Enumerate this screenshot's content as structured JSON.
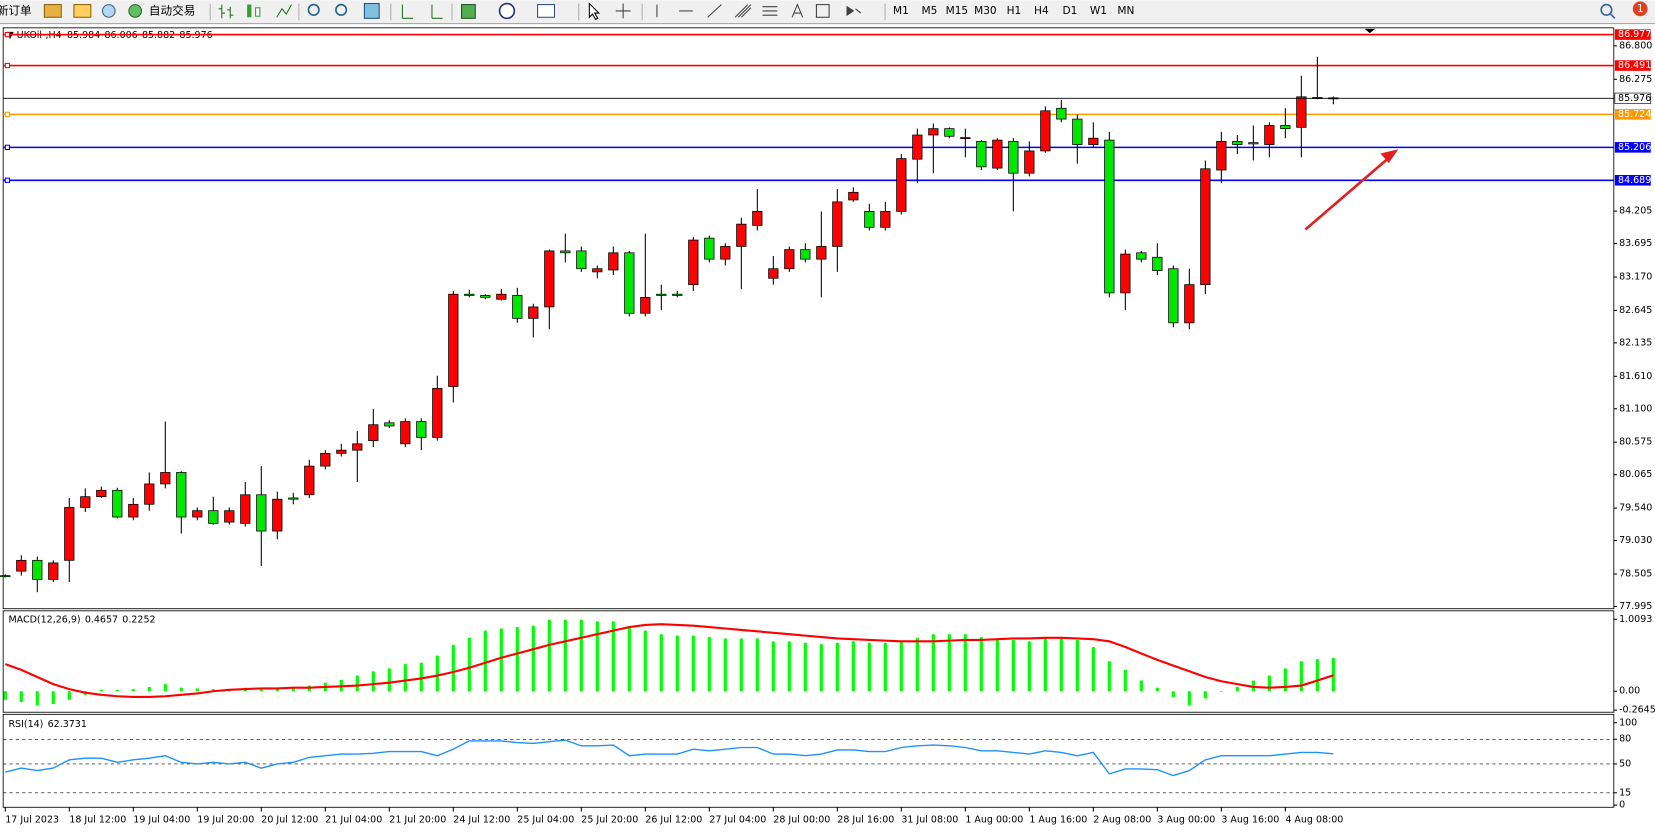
{
  "toolbar": {
    "new_order": "新订单",
    "auto_trading": "自动交易",
    "timeframes": [
      "M1",
      "M5",
      "M15",
      "M30",
      "H1",
      "H4",
      "D1",
      "W1",
      "MN"
    ],
    "notifications": 1
  },
  "chart_data": [
    {
      "type": "candlestick",
      "title": "UKOil-,H4",
      "up_color": "#ff0000",
      "down_color": "#00e600",
      "categories": [
        "17 Jul 2023",
        null,
        null,
        null,
        "18 Jul 12:00",
        null,
        null,
        null,
        "19 Jul 04:00",
        null,
        null,
        null,
        "19 Jul 20:00",
        null,
        null,
        null,
        "20 Jul 12:00",
        null,
        null,
        null,
        "21 Jul 04:00",
        null,
        null,
        null,
        "21 Jul 20:00",
        null,
        null,
        null,
        "24 Jul 12:00",
        null,
        null,
        null,
        "25 Jul 04:00",
        null,
        null,
        null,
        "25 Jul 20:00",
        null,
        null,
        null,
        "26 Jul 12:00",
        null,
        null,
        null,
        "27 Jul 04:00",
        null,
        null,
        null,
        "28 Jul 00:00",
        null,
        null,
        null,
        "28 Jul 16:00",
        null,
        null,
        null,
        "31 Jul 08:00",
        null,
        null,
        null,
        "1 Aug 00:00",
        null,
        null,
        null,
        "1 Aug 16:00",
        null,
        null,
        null,
        "2 Aug 08:00",
        null,
        null,
        null,
        "3 Aug 00:00",
        null,
        null,
        null,
        "3 Aug 16:00",
        null,
        null,
        null,
        "4 Aug 08:00",
        null,
        null,
        null
      ],
      "open": [
        78.48,
        78.55,
        78.72,
        78.42,
        78.72,
        79.55,
        79.72,
        79.82,
        79.4,
        79.6,
        79.92,
        80.1,
        79.4,
        79.5,
        79.32,
        79.3,
        79.75,
        79.18,
        79.7,
        79.75,
        80.2,
        80.4,
        80.45,
        80.6,
        80.88,
        80.55,
        80.9,
        80.65,
        81.45,
        82.9,
        82.88,
        82.82,
        82.88,
        82.52,
        82.7,
        83.58,
        83.58,
        83.25,
        83.28,
        83.55,
        82.6,
        82.9,
        82.9,
        83.05,
        83.78,
        83.45,
        83.65,
        83.98,
        83.15,
        83.3,
        83.6,
        83.45,
        83.65,
        84.38,
        84.2,
        83.95,
        84.2,
        85.02,
        85.4,
        85.5,
        85.35,
        85.3,
        84.88,
        85.3,
        84.8,
        85.15,
        85.82,
        85.65,
        85.25,
        85.32,
        82.92,
        83.55,
        83.48,
        83.3,
        82.45,
        83.05,
        84.85,
        85.3,
        85.28,
        85.25,
        85.55,
        85.52,
        85.99,
        85.984
      ],
      "high": [
        78.5,
        78.8,
        78.78,
        78.72,
        79.7,
        79.85,
        79.88,
        79.86,
        79.7,
        80.1,
        80.9,
        80.12,
        79.55,
        79.72,
        79.55,
        79.95,
        80.2,
        79.8,
        79.78,
        80.3,
        80.45,
        80.55,
        80.75,
        81.1,
        80.92,
        80.95,
        80.95,
        81.62,
        82.95,
        82.97,
        82.9,
        82.98,
        83.0,
        82.75,
        83.6,
        83.85,
        83.65,
        83.35,
        83.65,
        83.58,
        83.85,
        83.05,
        82.95,
        83.8,
        83.82,
        83.7,
        84.1,
        84.55,
        83.5,
        83.65,
        83.7,
        84.2,
        84.55,
        84.58,
        84.32,
        84.35,
        85.1,
        85.5,
        85.58,
        85.52,
        85.5,
        85.32,
        85.35,
        85.35,
        85.3,
        85.85,
        85.95,
        85.72,
        85.6,
        85.45,
        83.6,
        83.58,
        83.7,
        83.35,
        83.3,
        85.0,
        85.45,
        85.4,
        85.55,
        85.6,
        85.82,
        86.33,
        86.63,
        86.006
      ],
      "low": [
        78.45,
        78.48,
        78.22,
        78.38,
        78.38,
        79.48,
        79.7,
        79.38,
        79.35,
        79.5,
        79.85,
        79.14,
        79.35,
        79.28,
        79.28,
        79.25,
        78.63,
        79.05,
        79.6,
        79.7,
        80.15,
        80.35,
        79.95,
        80.5,
        80.8,
        80.5,
        80.45,
        80.6,
        81.2,
        82.85,
        82.82,
        82.8,
        82.45,
        82.22,
        82.35,
        83.4,
        83.25,
        83.15,
        83.2,
        82.55,
        82.55,
        82.65,
        82.85,
        82.95,
        83.4,
        83.35,
        82.98,
        83.9,
        83.05,
        83.25,
        83.4,
        82.85,
        83.25,
        84.35,
        83.9,
        83.9,
        84.15,
        84.65,
        84.8,
        85.35,
        85.05,
        84.85,
        84.85,
        84.2,
        84.75,
        85.12,
        85.6,
        84.95,
        85.2,
        82.85,
        82.65,
        83.4,
        83.2,
        82.38,
        82.35,
        82.9,
        84.65,
        85.1,
        85.0,
        85.05,
        85.35,
        85.05,
        85.96,
        85.882
      ],
      "close": [
        78.47,
        78.72,
        78.42,
        78.68,
        79.55,
        79.72,
        79.82,
        79.4,
        79.6,
        79.92,
        80.1,
        79.4,
        79.5,
        79.3,
        79.5,
        79.75,
        79.18,
        79.68,
        79.68,
        80.2,
        80.4,
        80.45,
        80.55,
        80.85,
        80.83,
        80.9,
        80.65,
        81.42,
        82.9,
        82.88,
        82.85,
        82.9,
        82.52,
        82.7,
        83.58,
        83.55,
        83.3,
        83.3,
        83.55,
        82.6,
        82.85,
        82.88,
        82.88,
        83.75,
        83.45,
        83.65,
        84.0,
        84.2,
        83.3,
        83.6,
        83.45,
        83.65,
        84.35,
        84.5,
        83.95,
        84.2,
        85.03,
        85.4,
        85.5,
        85.38,
        85.36,
        84.9,
        85.32,
        84.8,
        85.15,
        85.78,
        85.65,
        85.25,
        85.35,
        82.92,
        83.53,
        83.45,
        83.27,
        82.45,
        83.05,
        84.87,
        85.3,
        85.25,
        85.26,
        85.55,
        85.5,
        86.0,
        85.98,
        85.976
      ],
      "levels": [
        {
          "value": 86.977,
          "color": "#ff0000"
        },
        {
          "value": 86.491,
          "color": "#ff0000"
        },
        {
          "value": 85.724,
          "color": "#ff9900"
        },
        {
          "value": 85.206,
          "color": "#0000ff"
        },
        {
          "value": 84.689,
          "color": "#0000ff"
        }
      ],
      "ylim": [
        77.96,
        87.05
      ],
      "yticks": [
        {
          "value": 86.8,
          "label": "86.800"
        },
        86.275,
        84.205,
        83.695,
        {
          "value": 83.17,
          "label": "83.170"
        },
        82.645,
        82.135,
        {
          "value": 81.61,
          "label": "81.610"
        },
        {
          "value": 81.1,
          "label": "81.100"
        },
        80.575,
        80.065,
        {
          "value": 79.54,
          "label": "79.540"
        },
        {
          "value": 79.03,
          "label": "79.030"
        },
        78.505,
        77.995
      ]
    },
    {
      "type": "macd",
      "title": "MACD(12,26,9)",
      "series": [
        {
          "name": "MACD",
          "color": "#00ff00",
          "values": [
            -0.12,
            -0.15,
            -0.2,
            -0.18,
            -0.12,
            -0.05,
            0.02,
            0.02,
            0.03,
            0.06,
            0.1,
            0.05,
            0.04,
            0.03,
            0.03,
            0.05,
            0.03,
            0.04,
            0.05,
            0.08,
            0.12,
            0.16,
            0.22,
            0.28,
            0.32,
            0.38,
            0.4,
            0.5,
            0.65,
            0.75,
            0.85,
            0.88,
            0.9,
            0.92,
            1.0,
            1.0,
            1.0,
            0.98,
            0.98,
            0.9,
            0.85,
            0.8,
            0.78,
            0.78,
            0.76,
            0.74,
            0.74,
            0.74,
            0.7,
            0.7,
            0.68,
            0.66,
            0.68,
            0.7,
            0.68,
            0.68,
            0.7,
            0.75,
            0.8,
            0.8,
            0.8,
            0.76,
            0.74,
            0.72,
            0.7,
            0.74,
            0.75,
            0.72,
            0.62,
            0.42,
            0.3,
            0.15,
            0.05,
            -0.08,
            -0.2,
            -0.1,
            0.0,
            0.06,
            0.15,
            0.22,
            0.32,
            0.42,
            0.45,
            0.4657
          ]
        },
        {
          "name": "Signal",
          "color": "#ff0000",
          "values": [
            0.38,
            0.3,
            0.2,
            0.1,
            0.03,
            -0.02,
            -0.05,
            -0.07,
            -0.08,
            -0.08,
            -0.07,
            -0.05,
            -0.03,
            0.0,
            0.02,
            0.03,
            0.04,
            0.04,
            0.05,
            0.05,
            0.06,
            0.07,
            0.08,
            0.1,
            0.12,
            0.15,
            0.18,
            0.22,
            0.27,
            0.33,
            0.4,
            0.47,
            0.53,
            0.59,
            0.65,
            0.7,
            0.75,
            0.8,
            0.85,
            0.9,
            0.93,
            0.94,
            0.93,
            0.92,
            0.9,
            0.88,
            0.86,
            0.84,
            0.82,
            0.8,
            0.78,
            0.76,
            0.74,
            0.73,
            0.72,
            0.71,
            0.7,
            0.7,
            0.7,
            0.71,
            0.72,
            0.72,
            0.73,
            0.74,
            0.74,
            0.75,
            0.75,
            0.74,
            0.73,
            0.7,
            0.62,
            0.53,
            0.44,
            0.36,
            0.28,
            0.2,
            0.14,
            0.1,
            0.06,
            0.05,
            0.06,
            0.08,
            0.15,
            0.2252
          ]
        }
      ],
      "ylim": [
        -0.2645,
        1.0093
      ],
      "yticks": [
        1.0093,
        {
          "value": 0,
          "label": "0.00"
        },
        -0.2645
      ]
    },
    {
      "type": "line",
      "title": "RSI(14)",
      "color": "#1e90ff",
      "values": [
        40,
        45,
        42,
        45,
        55,
        57,
        57,
        52,
        55,
        57,
        60,
        52,
        50,
        52,
        50,
        52,
        45,
        50,
        52,
        58,
        60,
        62,
        62,
        63,
        65,
        65,
        65,
        60,
        68,
        78,
        78,
        78,
        76,
        75,
        77,
        79,
        72,
        72,
        73,
        60,
        62,
        62,
        62,
        68,
        66,
        68,
        70,
        70,
        62,
        62,
        60,
        62,
        67,
        67,
        65,
        65,
        70,
        72,
        73,
        72,
        70,
        66,
        66,
        64,
        62,
        66,
        64,
        60,
        64,
        38,
        44,
        44,
        43,
        36,
        42,
        55,
        60,
        60,
        60,
        60,
        62,
        64,
        64,
        62.3731
      ],
      "ylim": [
        0,
        100
      ],
      "yticks": [
        100,
        80,
        50,
        15,
        0
      ]
    }
  ]
}
